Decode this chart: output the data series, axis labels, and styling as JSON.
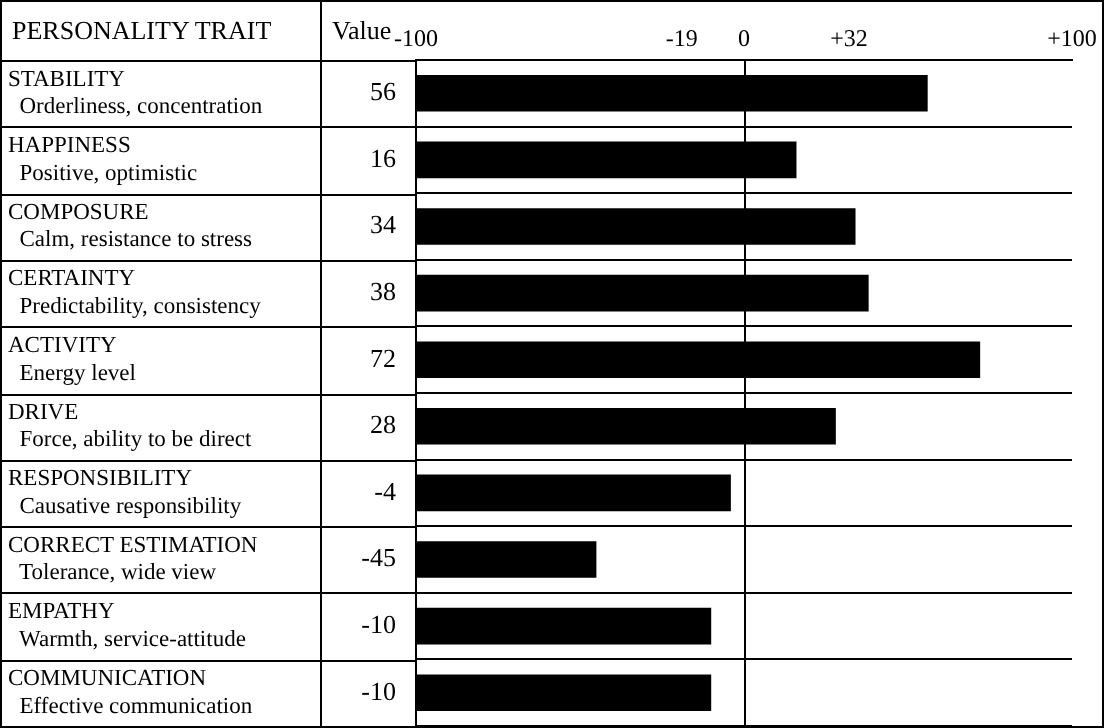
{
  "chart_data": {
    "type": "bar",
    "orientation": "horizontal",
    "ylabel": "PERSONALITY TRAIT",
    "xlabel": "Value",
    "categories": [
      "STABILITY\nOrderliness, concentration",
      "HAPPINESS\nPositive, optimistic",
      "COMPOSURE\nCalm, resistance to stress",
      "CERTAINTY\nPredictability, consistency",
      "ACTIVITY\nEnergy level",
      "DRIVE\nForce, ability to be direct",
      "RESPONSIBILITY\nCausative responsibility",
      "CORRECT ESTIMATION\nTolerance, wide view",
      "EMPATHY\nWarmth, service-attitude",
      "COMMUNICATION\nEffective communication"
    ],
    "base": [
      -100,
      -100,
      -100,
      -100,
      -100,
      -100,
      -100,
      -100,
      -100,
      -100
    ],
    "values": [
      156,
      116,
      134,
      138,
      172,
      128,
      96,
      55,
      90,
      90
    ],
    "value_labels": [
      "56",
      "16",
      "34",
      "38",
      "72",
      "28",
      "-4",
      "-45",
      "-10",
      "-10"
    ],
    "color": "#000000",
    "xlim": [
      -100,
      100
    ],
    "xticks": [
      -100,
      -19,
      0,
      {
        "value": 32,
        "label": "+32"
      },
      {
        "value": 100,
        "label": "+100"
      }
    ],
    "ref_lines": [
      {
        "axis": "x",
        "value": 0,
        "color": "#000000"
      }
    ],
    "grid": "y"
  }
}
